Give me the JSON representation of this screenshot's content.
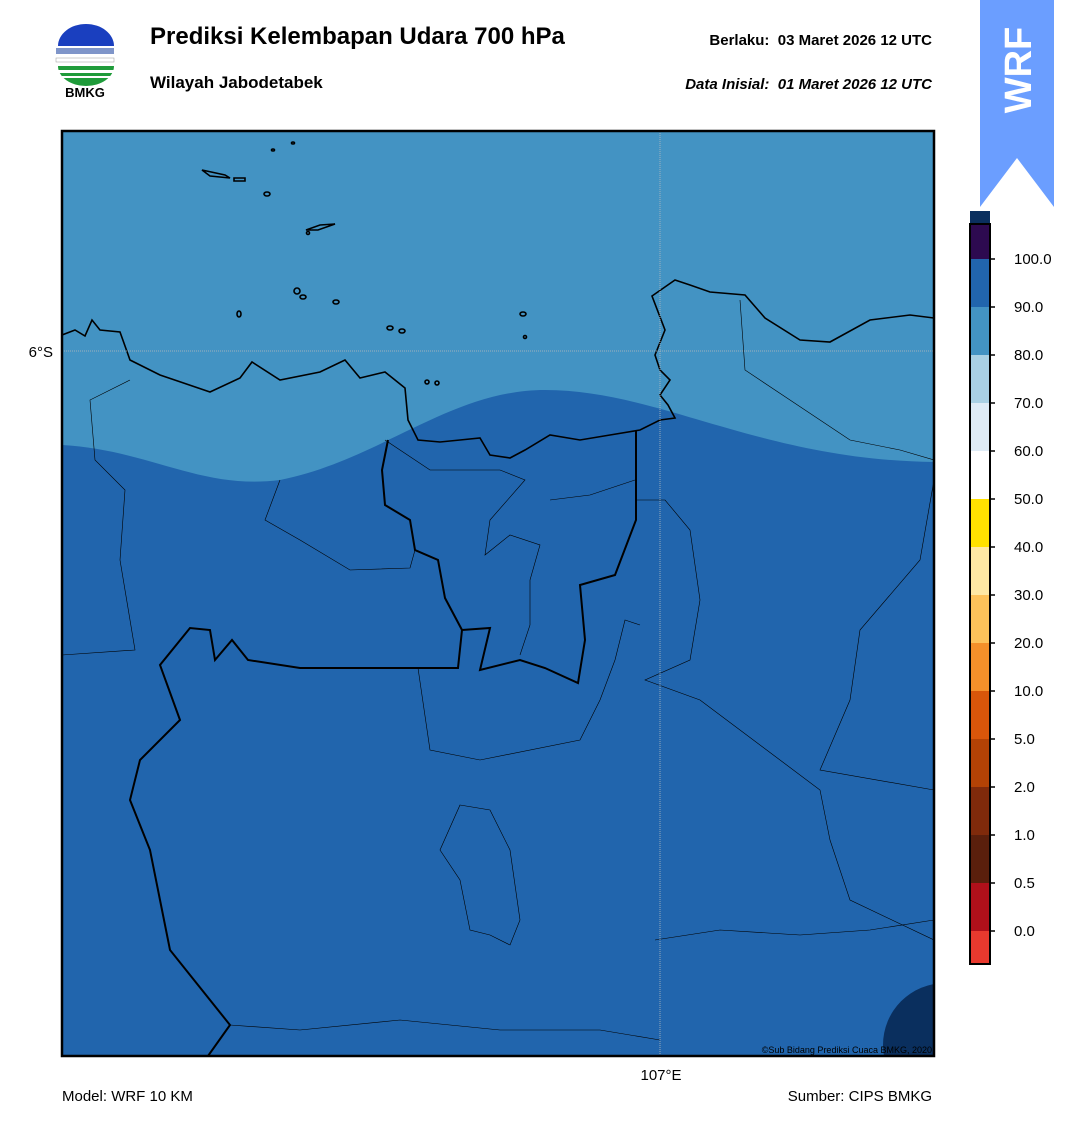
{
  "header": {
    "logo_text": "BMKG",
    "title": "Prediksi Kelembapan Udara 700 hPa",
    "subtitle": "Wilayah Jabodetabek",
    "valid": "Berlaku:  03 Maret 2026 12 UTC",
    "init": "Data Inisial:  01 Maret 2026 12 UTC"
  },
  "badge": "WRF",
  "map": {
    "lat_label": "6°S",
    "lon_label": "107°E",
    "credit": "©Sub Bidang Prediksi Cuaca BMKG, 2020"
  },
  "colorbar": {
    "ticks": [
      {
        "value": 0,
        "label": "0.0"
      },
      {
        "value": 0.5,
        "label": "0.5"
      },
      {
        "value": 1,
        "label": "1.0"
      },
      {
        "value": 2,
        "label": "2.0"
      },
      {
        "value": 5,
        "label": "5.0"
      },
      {
        "value": 10,
        "label": "10.0"
      },
      {
        "value": 20,
        "label": "20.0"
      },
      {
        "value": 30,
        "label": "30.0"
      },
      {
        "value": 40,
        "label": "40.0"
      },
      {
        "value": 50,
        "label": "50.0"
      },
      {
        "value": 60,
        "label": "60.0"
      },
      {
        "value": 70,
        "label": "70.0"
      },
      {
        "value": 80,
        "label": "80.0"
      },
      {
        "value": 90,
        "label": "90.0"
      },
      {
        "value": 100,
        "label": "100.0"
      }
    ],
    "colors": [
      "#e8392e",
      "#b0101a",
      "#5a1f0c",
      "#7f2a0b",
      "#b34205",
      "#d9560a",
      "#f5902a",
      "#fdc25a",
      "#fee8a4",
      "#ffe100",
      "#ffffff",
      "#deebf6",
      "#a9d0e4",
      "#4393c3",
      "#2165ad",
      "#0a2f5e",
      "#2d0a50"
    ]
  },
  "footer": {
    "model": "Model: WRF 10 KM",
    "source": "Sumber: CIPS BMKG"
  }
}
